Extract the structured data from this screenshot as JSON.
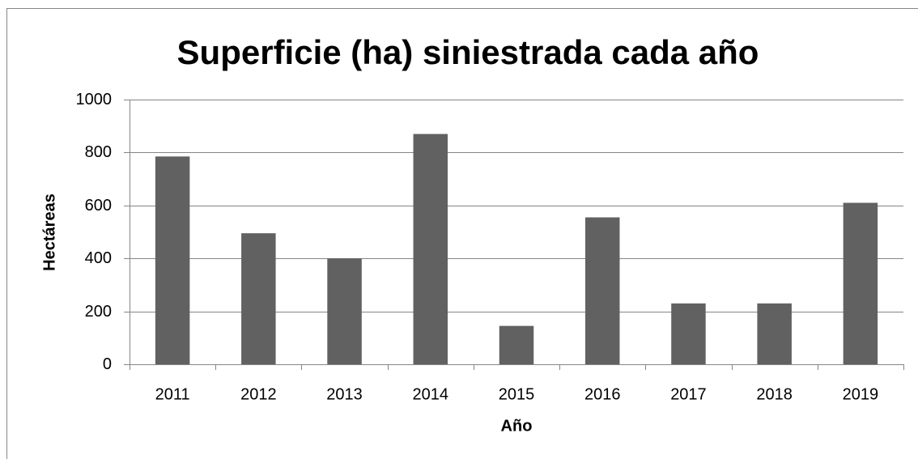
{
  "chart_data": {
    "type": "bar",
    "title": "Superficie (ha) siniestrada cada año",
    "xlabel": "Año",
    "ylabel": "Hectáreas",
    "categories": [
      "2011",
      "2012",
      "2013",
      "2014",
      "2015",
      "2016",
      "2017",
      "2018",
      "2019"
    ],
    "values": [
      785,
      495,
      400,
      870,
      145,
      555,
      230,
      230,
      610
    ],
    "color": "#616161",
    "ylim": [
      0,
      1000
    ],
    "yticks": [
      0,
      200,
      400,
      600,
      800,
      1000
    ],
    "grid": true
  }
}
